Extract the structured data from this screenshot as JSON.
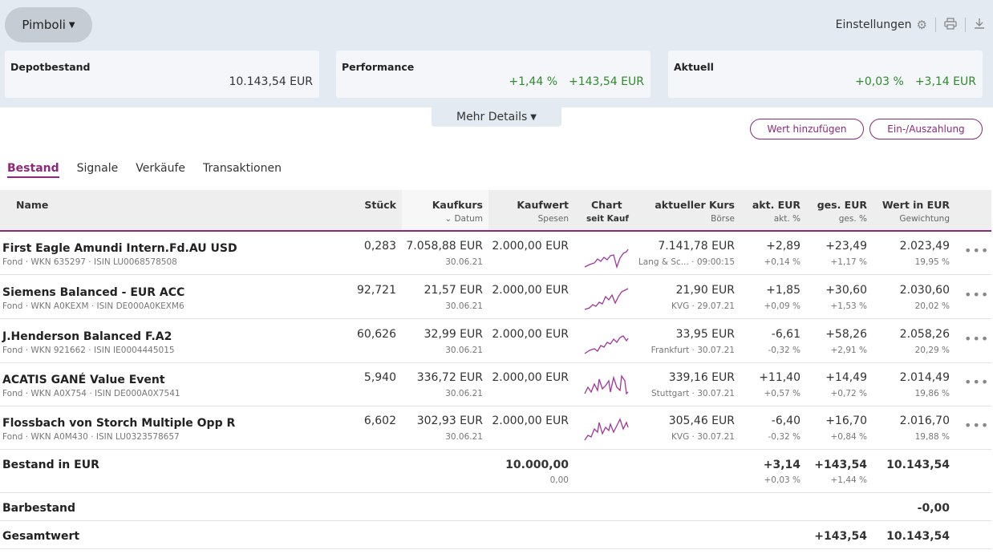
{
  "header": {
    "depot_name": "Pimboli",
    "settings_label": "Einstellungen",
    "more_details_label": "Mehr Details"
  },
  "summary": {
    "depotbestand": {
      "title": "Depotbestand",
      "value": "10.143,54 EUR"
    },
    "performance": {
      "title": "Performance",
      "pct": "+1,44 %",
      "abs": "+143,54 EUR"
    },
    "aktuell": {
      "title": "Aktuell",
      "pct": "+0,03 %",
      "abs": "+3,14 EUR"
    }
  },
  "actions": {
    "add_value": "Wert hinzufügen",
    "deposit": "Ein-/Auszahlung"
  },
  "tabs": [
    "Bestand",
    "Signale",
    "Verkäufe",
    "Transaktionen"
  ],
  "columns": {
    "name": "Name",
    "stueck": "Stück",
    "kaufkurs": "Kaufkurs",
    "kaufkurs_sub": "Datum",
    "kaufwert": "Kaufwert",
    "kaufwert_sub": "Spesen",
    "chart": "Chart",
    "chart_sub": "seit Kauf",
    "kurs": "aktueller Kurs",
    "kurs_sub": "Börse",
    "akt": "akt. EUR",
    "akt_sub": "akt. %",
    "ges": "ges. EUR",
    "ges_sub": "ges. %",
    "wert": "Wert in EUR",
    "wert_sub": "Gewichtung"
  },
  "rows": [
    {
      "name": "First Eagle Amundi Intern.Fd.AU USD",
      "meta": "Fond · WKN 635297 · ISIN LU0068578508",
      "stueck": "0,283",
      "kaufkurs": "7.058,88 EUR",
      "datum": "30.06.21",
      "kaufwert": "2.000,00 EUR",
      "kurs": "7.141,78 EUR",
      "boerse": "Lang & Sc... · 09:00:15",
      "akt": "+2,89",
      "akt_pct": "+0,14 %",
      "ges": "+23,49",
      "ges_pct": "+1,17 %",
      "wert": "2.023,49",
      "gew": "19,95 %"
    },
    {
      "name": "Siemens Balanced - EUR ACC",
      "meta": "Fond · WKN A0KEXM · ISIN DE000A0KEXM6",
      "stueck": "92,721",
      "kaufkurs": "21,57 EUR",
      "datum": "30.06.21",
      "kaufwert": "2.000,00 EUR",
      "kurs": "21,90 EUR",
      "boerse": "KVG · 29.07.21",
      "akt": "+1,85",
      "akt_pct": "+0,09 %",
      "ges": "+30,60",
      "ges_pct": "+1,53 %",
      "wert": "2.030,60",
      "gew": "20,02 %"
    },
    {
      "name": "J.Henderson Balanced F.A2",
      "meta": "Fond · WKN 921662 · ISIN IE0004445015",
      "stueck": "60,626",
      "kaufkurs": "32,99 EUR",
      "datum": "30.06.21",
      "kaufwert": "2.000,00 EUR",
      "kurs": "33,95 EUR",
      "boerse": "Frankfurt · 30.07.21",
      "akt": "-6,61",
      "akt_pct": "-0,32 %",
      "ges": "+58,26",
      "ges_pct": "+2,91 %",
      "wert": "2.058,26",
      "gew": "20,29 %"
    },
    {
      "name": "ACATIS GANÉ Value Event",
      "meta": "Fond · WKN A0X754 · ISIN DE000A0X7541",
      "stueck": "5,940",
      "kaufkurs": "336,72 EUR",
      "datum": "30.06.21",
      "kaufwert": "2.000,00 EUR",
      "kurs": "339,16 EUR",
      "boerse": "Stuttgart · 30.07.21",
      "akt": "+11,40",
      "akt_pct": "+0,57 %",
      "ges": "+14,49",
      "ges_pct": "+0,72 %",
      "wert": "2.014,49",
      "gew": "19,86 %"
    },
    {
      "name": "Flossbach von Storch Multiple Opp R",
      "meta": "Fond · WKN A0M430 · ISIN LU0323578657",
      "stueck": "6,602",
      "kaufkurs": "302,93 EUR",
      "datum": "30.06.21",
      "kaufwert": "2.000,00 EUR",
      "kurs": "305,46 EUR",
      "boerse": "KVG · 30.07.21",
      "akt": "-6,40",
      "akt_pct": "-0,32 %",
      "ges": "+16,70",
      "ges_pct": "+0,84 %",
      "wert": "2.016,70",
      "gew": "19,88 %"
    }
  ],
  "totals": {
    "bestand_label": "Bestand in EUR",
    "kaufwert": "10.000,00",
    "spesen": "0,00",
    "akt": "+3,14",
    "akt_pct": "+0,03 %",
    "ges": "+143,54",
    "ges_pct": "+1,44 %",
    "wert": "10.143,54",
    "bar_label": "Barbestand",
    "bar_value": "-0,00",
    "gesamt_label": "Gesamtwert",
    "gesamt_ges": "+143,54",
    "gesamt_wert": "10.143,54"
  },
  "colors": {
    "accent": "#8a2a7a",
    "positive": "#2e8b2e",
    "negative": "#c0392b"
  }
}
